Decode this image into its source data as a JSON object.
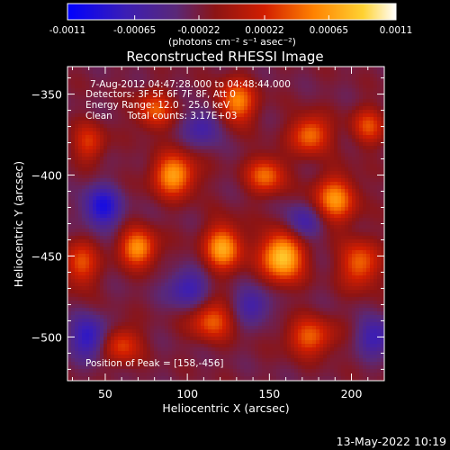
{
  "colorbar": {
    "tick_labels": [
      "-0.0011",
      "-0.00065",
      "-0.00022",
      "0.00022",
      "0.00065",
      "0.0011"
    ],
    "units_label": "(photons cm⁻² s⁻¹ asec⁻²)",
    "range": [
      -0.0011,
      0.0011
    ]
  },
  "chart_data": {
    "type": "heatmap",
    "title": "Reconstructed RHESSI Image",
    "xlabel": "Heliocentric X (arcsec)",
    "ylabel": "Heliocentric Y (arcsec)",
    "xlim": [
      27,
      220
    ],
    "ylim": [
      -527,
      -333
    ],
    "xticks": [
      50,
      100,
      150,
      200
    ],
    "yticks": [
      -350,
      -400,
      -450,
      -500
    ],
    "colormap": "ct3 (blue-purple-red-orange-yellow-white)",
    "annotations": [
      "7-Aug-2012 04:47:28.000 to 04:48:44.000",
      "Detectors: 3F 5F 6F 7F 8F, Att 0",
      "Energy Range: 12.0 - 25.0 keV",
      "Clean     Total counts: 3.17E+03"
    ],
    "peak_label": "Position of Peak = [158,-456]",
    "peak": [
      158,
      -456
    ],
    "total_counts": 3170,
    "energy_range_keV": [
      12.0,
      25.0
    ],
    "sources": [
      {
        "x": 158,
        "y": -450,
        "value": 0.0011,
        "sx": 9,
        "sy": 11
      },
      {
        "x": 122,
        "y": -445,
        "value": 0.0009,
        "sx": 8,
        "sy": 10
      },
      {
        "x": 92,
        "y": -400,
        "value": 0.0009,
        "sx": 9,
        "sy": 9
      },
      {
        "x": 70,
        "y": -445,
        "value": 0.00085,
        "sx": 8,
        "sy": 8
      },
      {
        "x": 130,
        "y": -355,
        "value": 0.0008,
        "sx": 8,
        "sy": 9
      },
      {
        "x": 190,
        "y": -415,
        "value": 0.0008,
        "sx": 9,
        "sy": 10
      },
      {
        "x": 175,
        "y": -375,
        "value": 0.00075,
        "sx": 8,
        "sy": 8
      },
      {
        "x": 148,
        "y": -400,
        "value": 0.0007,
        "sx": 8,
        "sy": 8
      },
      {
        "x": 205,
        "y": -455,
        "value": 0.0007,
        "sx": 8,
        "sy": 10
      },
      {
        "x": 115,
        "y": -490,
        "value": 0.00065,
        "sx": 9,
        "sy": 8
      },
      {
        "x": 175,
        "y": -500,
        "value": 0.00065,
        "sx": 10,
        "sy": 8
      },
      {
        "x": 80,
        "y": -360,
        "value": 0.0006,
        "sx": 8,
        "sy": 8
      },
      {
        "x": 35,
        "y": -455,
        "value": 0.0006,
        "sx": 7,
        "sy": 10
      },
      {
        "x": 60,
        "y": -505,
        "value": 0.00055,
        "sx": 8,
        "sy": 8
      },
      {
        "x": 210,
        "y": -370,
        "value": 0.00055,
        "sx": 7,
        "sy": 8
      },
      {
        "x": 40,
        "y": -380,
        "value": 0.0005,
        "sx": 7,
        "sy": 8
      },
      {
        "x": 48,
        "y": -420,
        "value": -0.0007,
        "sx": 8,
        "sy": 9
      },
      {
        "x": 40,
        "y": -500,
        "value": -0.0006,
        "sx": 8,
        "sy": 9
      },
      {
        "x": 100,
        "y": -470,
        "value": -0.0005,
        "sx": 9,
        "sy": 8
      },
      {
        "x": 170,
        "y": -430,
        "value": -0.0005,
        "sx": 8,
        "sy": 8
      },
      {
        "x": 215,
        "y": -500,
        "value": -0.0005,
        "sx": 8,
        "sy": 8
      },
      {
        "x": 110,
        "y": -370,
        "value": -0.00045,
        "sx": 8,
        "sy": 8
      },
      {
        "x": 140,
        "y": -480,
        "value": -0.00045,
        "sx": 8,
        "sy": 8
      }
    ]
  },
  "timestamp": "13-May-2022 10:19"
}
